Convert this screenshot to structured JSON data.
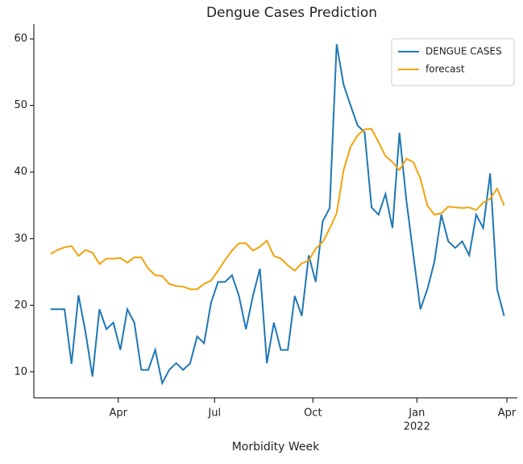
{
  "chart_data": {
    "type": "line",
    "title": "Dengue Cases Prediction",
    "x_label": "Morbidity Week",
    "x": [
      0,
      1,
      2,
      3,
      4,
      5,
      6,
      7,
      8,
      9,
      10,
      11,
      12,
      13,
      14,
      15,
      16,
      17,
      18,
      19,
      20,
      21,
      22,
      23,
      24,
      25,
      26,
      27,
      28,
      29,
      30,
      31,
      32,
      33,
      34,
      35,
      36,
      37,
      38,
      39,
      40,
      41,
      42,
      43,
      44,
      45,
      46,
      47,
      48,
      49,
      50,
      51,
      52,
      53,
      54,
      55,
      56,
      57,
      58,
      59,
      60,
      61,
      62,
      63,
      64,
      65
    ],
    "series": [
      {
        "name": "DENGUE CASES",
        "color": "#1f77b4",
        "values": [
          19.4,
          19.4,
          19.4,
          11.2,
          21.5,
          16,
          9.3,
          19.4,
          16.4,
          17.4,
          13.3,
          19.4,
          17.4,
          10.3,
          10.3,
          13.3,
          8.3,
          10.3,
          11.3,
          10.3,
          11.3,
          15.3,
          14.3,
          20.4,
          23.5,
          23.5,
          24.5,
          21.4,
          16.4,
          21.4,
          25.5,
          11.3,
          17.4,
          13.3,
          13.3,
          21.4,
          18.4,
          27.5,
          23.5,
          32.6,
          34.6,
          59.2,
          53.1,
          50,
          47,
          46,
          34.7,
          33.6,
          36.7,
          31.6,
          45.9,
          35.7,
          27.5,
          19.4,
          22.4,
          26.5,
          33.6,
          29.6,
          28.6,
          29.6,
          27.5,
          33.6,
          31.6,
          39.8,
          22.4,
          18.4
        ]
      },
      {
        "name": "forecast",
        "color": "#f0a30a",
        "values": [
          27.7,
          28.3,
          28.7,
          28.9,
          27.4,
          28.3,
          27.9,
          26.2,
          27,
          27,
          27.1,
          26.4,
          27.2,
          27.2,
          25.5,
          24.5,
          24.4,
          23.2,
          22.9,
          22.8,
          22.4,
          22.4,
          23.2,
          23.7,
          25.2,
          26.8,
          28.2,
          29.3,
          29.3,
          28.2,
          28.8,
          29.7,
          27.4,
          27,
          26,
          25.2,
          26.3,
          26.7,
          28.5,
          29.5,
          31.5,
          33.8,
          40.3,
          43.8,
          45.5,
          46.4,
          46.5,
          44.5,
          42.4,
          41.5,
          40.3,
          42,
          41.5,
          39,
          35,
          33.6,
          33.8,
          34.8,
          34.7,
          34.6,
          34.7,
          34.3,
          35.4,
          36,
          37.5,
          35
        ]
      }
    ],
    "xlim": [
      -2.4,
      66.9
    ],
    "xticks": [
      {
        "value": 9.7,
        "label": "Apr"
      },
      {
        "value": 23.5,
        "label": "Jul"
      },
      {
        "value": 37.6,
        "label": "Oct"
      },
      {
        "value": 52.5,
        "label": "Jan"
      },
      {
        "value": 65.4,
        "label": "Apr"
      }
    ],
    "x_year_label": {
      "value": 52.5,
      "label": "2022"
    },
    "ylim": [
      6.1,
      62.2
    ],
    "yticks": [
      10,
      20,
      30,
      40,
      50,
      60
    ],
    "grid": false,
    "legend": "upper right"
  }
}
